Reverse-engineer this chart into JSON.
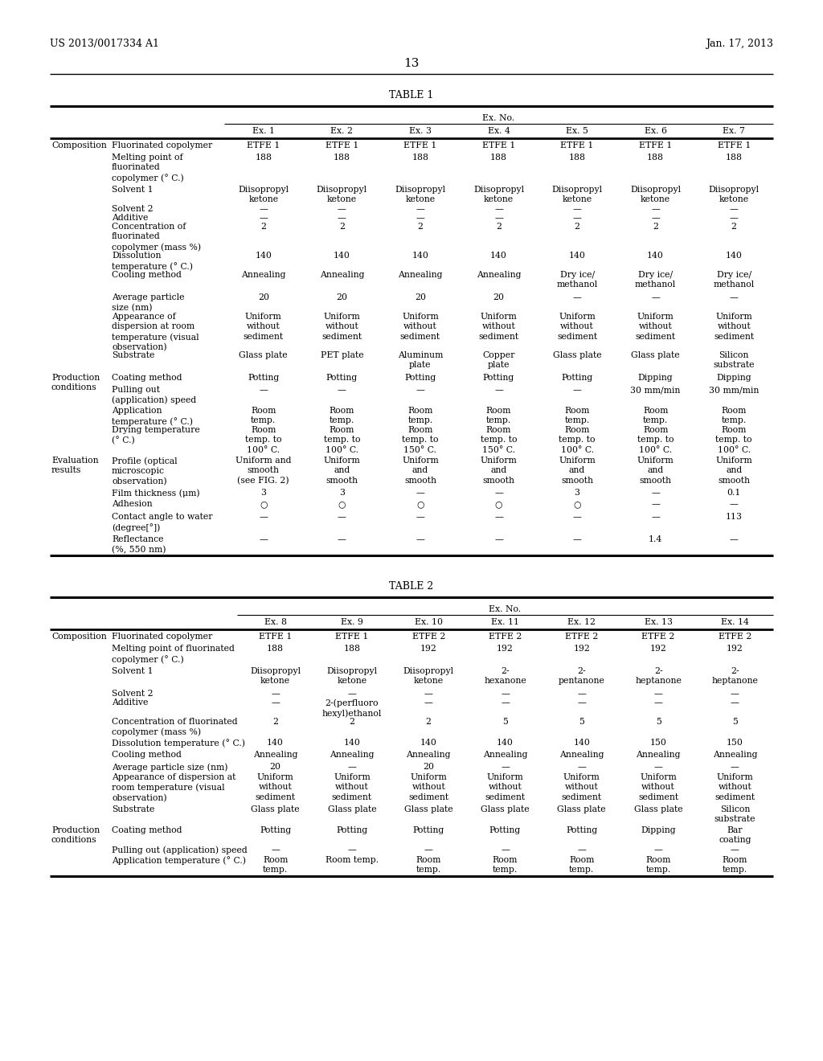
{
  "bg_color": "#ffffff",
  "patent_number": "US 2013/0017334 A1",
  "date": "Jan. 17, 2013",
  "page_number": "13",
  "table1_title": "TABLE 1",
  "table2_title": "TABLE 2",
  "ex_no_label": "Ex. No.",
  "table1_columns": [
    "Ex. 1",
    "Ex. 2",
    "Ex. 3",
    "Ex. 4",
    "Ex. 5",
    "Ex. 6",
    "Ex. 7"
  ],
  "table2_columns": [
    "Ex. 8",
    "Ex. 9",
    "Ex. 10",
    "Ex. 11",
    "Ex. 12",
    "Ex. 13",
    "Ex. 14"
  ],
  "table1_rows": [
    [
      "Composition",
      "Fluorinated copolymer",
      "ETFE 1",
      "ETFE 1",
      "ETFE 1",
      "ETFE 1",
      "ETFE 1",
      "ETFE 1",
      "ETFE 1"
    ],
    [
      "",
      "Melting point of\nfluorinated\ncopolymer (° C.)",
      "188",
      "188",
      "188",
      "188",
      "188",
      "188",
      "188"
    ],
    [
      "",
      "Solvent 1",
      "Diisopropyl\nketone",
      "Diisopropyl\nketone",
      "Diisopropyl\nketone",
      "Diisopropyl\nketone",
      "Diisopropyl\nketone",
      "Diisopropyl\nketone",
      "Diisopropyl\nketone"
    ],
    [
      "",
      "Solvent 2",
      "—",
      "—",
      "—",
      "—",
      "—",
      "—",
      "—"
    ],
    [
      "",
      "Additive",
      "—",
      "—",
      "—",
      "—",
      "—",
      "—",
      "—"
    ],
    [
      "",
      "Concentration of\nfluorinated\ncopolymer (mass %)",
      "2",
      "2",
      "2",
      "2",
      "2",
      "2",
      "2"
    ],
    [
      "",
      "Dissolution\ntemperature (° C.)",
      "140",
      "140",
      "140",
      "140",
      "140",
      "140",
      "140"
    ],
    [
      "",
      "Cooling method",
      "Annealing",
      "Annealing",
      "Annealing",
      "Annealing",
      "Dry ice/\nmethanol",
      "Dry ice/\nmethanol",
      "Dry ice/\nmethanol"
    ],
    [
      "",
      "Average particle\nsize (nm)",
      "20",
      "20",
      "20",
      "20",
      "—",
      "—",
      "—"
    ],
    [
      "",
      "Appearance of\ndispersion at room\ntemperature (visual\nobservation)",
      "Uniform\nwithout\nsediment",
      "Uniform\nwithout\nsediment",
      "Uniform\nwithout\nsediment",
      "Uniform\nwithout\nsediment",
      "Uniform\nwithout\nsediment",
      "Uniform\nwithout\nsediment",
      "Uniform\nwithout\nsediment"
    ],
    [
      "",
      "Substrate",
      "Glass plate",
      "PET plate",
      "Aluminum\nplate",
      "Copper\nplate",
      "Glass plate",
      "Glass plate",
      "Silicon\nsubstrate"
    ],
    [
      "Production\nconditions",
      "Coating method",
      "Potting",
      "Potting",
      "Potting",
      "Potting",
      "Potting",
      "Dipping",
      "Dipping"
    ],
    [
      "",
      "Pulling out\n(application) speed",
      "—",
      "—",
      "—",
      "—",
      "—",
      "30 mm/min",
      "30 mm/min"
    ],
    [
      "",
      "Application\ntemperature (° C.)",
      "Room\ntemp.",
      "Room\ntemp.",
      "Room\ntemp.",
      "Room\ntemp.",
      "Room\ntemp.",
      "Room\ntemp.",
      "Room\ntemp."
    ],
    [
      "",
      "Drying temperature\n(° C.)",
      "Room\ntemp. to\n100° C.",
      "Room\ntemp. to\n100° C.",
      "Room\ntemp. to\n150° C.",
      "Room\ntemp. to\n150° C.",
      "Room\ntemp. to\n100° C.",
      "Room\ntemp. to\n100° C.",
      "Room\ntemp. to\n100° C."
    ],
    [
      "Evaluation\nresults",
      "Profile (optical\nmicroscopic\nobservation)",
      "Uniform and\nsmooth\n(see FIG. 2)",
      "Uniform\nand\nsmooth",
      "Uniform\nand\nsmooth",
      "Uniform\nand\nsmooth",
      "Uniform\nand\nsmooth",
      "Uniform\nand\nsmooth",
      "Uniform\nand\nsmooth"
    ],
    [
      "",
      "Film thickness (μm)",
      "3",
      "3",
      "—",
      "—",
      "3",
      "—",
      "0.1"
    ],
    [
      "",
      "Adhesion",
      "○",
      "○",
      "○",
      "○",
      "○",
      "—",
      "—"
    ],
    [
      "",
      "Contact angle to water\n(degree[°])",
      "—",
      "—",
      "—",
      "—",
      "—",
      "—",
      "113"
    ],
    [
      "",
      "Reflectance\n(%, 550 nm)",
      "—",
      "—",
      "—",
      "—",
      "—",
      "1.4",
      "—"
    ]
  ],
  "table2_rows": [
    [
      "Composition",
      "Fluorinated copolymer",
      "ETFE 1",
      "ETFE 1",
      "ETFE 2",
      "ETFE 2",
      "ETFE 2",
      "ETFE 2",
      "ETFE 2"
    ],
    [
      "",
      "Melting point of fluorinated\ncopolymer (° C.)",
      "188",
      "188",
      "192",
      "192",
      "192",
      "192",
      "192"
    ],
    [
      "",
      "Solvent 1",
      "Diisopropyl\nketone",
      "Diisopropyl\nketone",
      "Diisopropyl\nketone",
      "2-\nhexanone",
      "2-\npentanone",
      "2-\nheptanone",
      "2-\nheptanone"
    ],
    [
      "",
      "Solvent 2",
      "—",
      "—",
      "—",
      "—",
      "—",
      "—",
      "—"
    ],
    [
      "",
      "Additive",
      "—",
      "2-(perfluoro\nhexyl)ethanol",
      "—",
      "—",
      "—",
      "—",
      "—"
    ],
    [
      "",
      "Concentration of fluorinated\ncopolymer (mass %)",
      "2",
      "2",
      "2",
      "5",
      "5",
      "5",
      "5"
    ],
    [
      "",
      "Dissolution temperature (° C.)",
      "140",
      "140",
      "140",
      "140",
      "140",
      "150",
      "150"
    ],
    [
      "",
      "Cooling method",
      "Annealing",
      "Annealing",
      "Annealing",
      "Annealing",
      "Annealing",
      "Annealing",
      "Annealing"
    ],
    [
      "",
      "Average particle size (nm)",
      "20",
      "—",
      "20",
      "—",
      "—",
      "—",
      "—"
    ],
    [
      "",
      "Appearance of dispersion at\nroom temperature (visual\nobservation)",
      "Uniform\nwithout\nsediment",
      "Uniform\nwithout\nsediment",
      "Uniform\nwithout\nsediment",
      "Uniform\nwithout\nsediment",
      "Uniform\nwithout\nsediment",
      "Uniform\nwithout\nsediment",
      "Uniform\nwithout\nsediment"
    ],
    [
      "",
      "Substrate",
      "Glass plate",
      "Glass plate",
      "Glass plate",
      "Glass plate",
      "Glass plate",
      "Glass plate",
      "Silicon\nsubstrate"
    ],
    [
      "Production\nconditions",
      "Coating method",
      "Potting",
      "Potting",
      "Potting",
      "Potting",
      "Potting",
      "Dipping",
      "Bar\ncoating"
    ],
    [
      "",
      "Pulling out (application) speed",
      "—",
      "—",
      "—",
      "—",
      "—",
      "—",
      "—"
    ],
    [
      "",
      "Application temperature (° C.)",
      "Room\ntemp.",
      "Room temp.",
      "Room\ntemp.",
      "Room\ntemp.",
      "Room\ntemp.",
      "Room\ntemp.",
      "Room\ntemp."
    ]
  ]
}
